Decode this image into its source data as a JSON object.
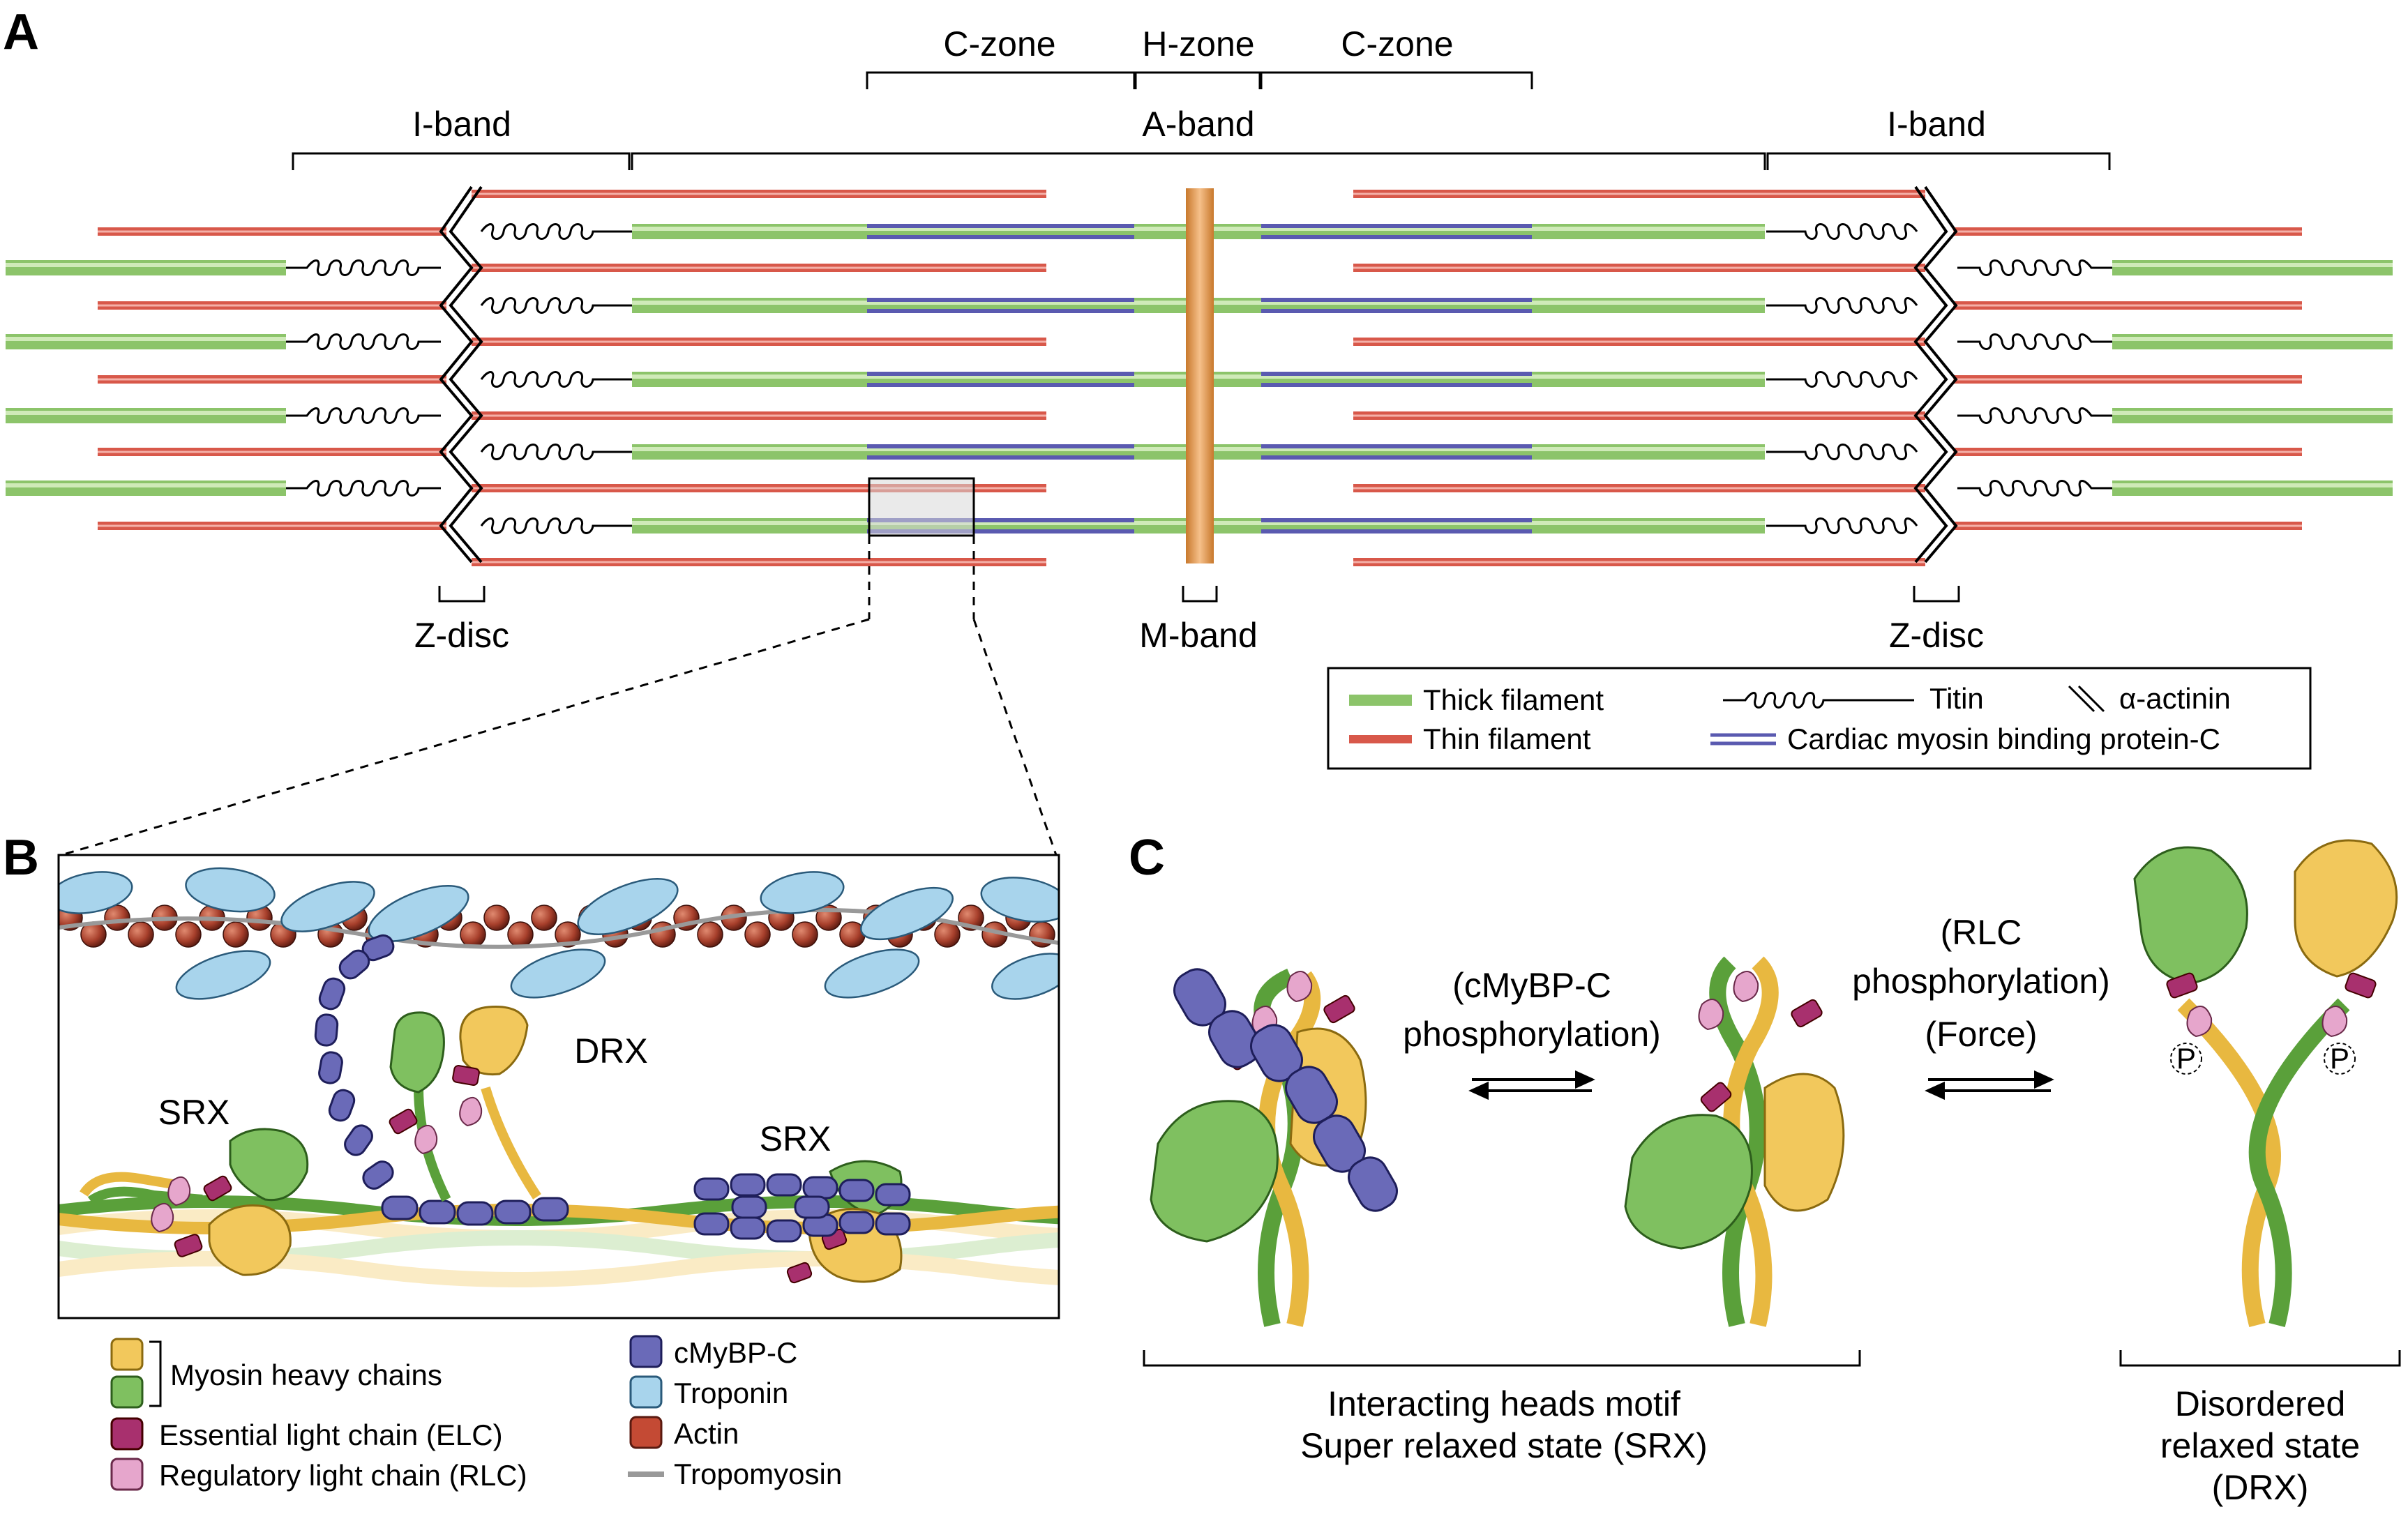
{
  "panels": {
    "a": "A",
    "b": "B",
    "c": "C"
  },
  "panel_a": {
    "top_labels": {
      "c_zone_left": "C-zone",
      "h_zone": "H-zone",
      "c_zone_right": "C-zone",
      "i_band_left": "I-band",
      "a_band": "A-band",
      "i_band_right": "I-band"
    },
    "bottom_labels": {
      "z_disc_left": "Z-disc",
      "m_band": "M-band",
      "z_disc_right": "Z-disc"
    },
    "legend": {
      "thick": "Thick filament",
      "thin": "Thin filament",
      "titin": "Titin",
      "actinin": "α-actinin",
      "cmybpc": "Cardiac myosin binding protein-C"
    }
  },
  "panel_b": {
    "labels": {
      "srx_left": "SRX",
      "drx": "DRX",
      "srx_right": "SRX"
    },
    "legend": {
      "myosin_heavy": "Myosin heavy chains",
      "elc": "Essential light chain (ELC)",
      "rlc": "Regulatory light chain (RLC)",
      "cmybpc": "cMyBP-C",
      "troponin": "Troponin",
      "actin": "Actin",
      "tropomyosin": "Tropomyosin"
    }
  },
  "panel_c": {
    "arrow1": {
      "line1": "(cMyBP-C",
      "line2": "phosphorylation)"
    },
    "arrow2": {
      "line1": "(RLC",
      "line2": "phosphorylation)",
      "line3": "(Force)"
    },
    "phospho": "P",
    "srx_caption": {
      "line1": "Interacting heads motif",
      "line2": "Super relaxed state (SRX)"
    },
    "drx_caption": {
      "line1": "Disordered",
      "line2": "relaxed state",
      "line3": "(DRX)"
    }
  },
  "colors": {
    "thick": "#9ed07e",
    "thin": "#e06a5c",
    "cmybpc": "#6a6ab8",
    "mband": "#e59a4a",
    "myosin_green": "#7fc060",
    "myosin_yellow": "#f2c85c",
    "elc": "#a8306e",
    "rlc": "#e6a6cc",
    "troponin": "#a8d4ec",
    "actin": "#a8402c",
    "tropomyosin": "#999999"
  }
}
